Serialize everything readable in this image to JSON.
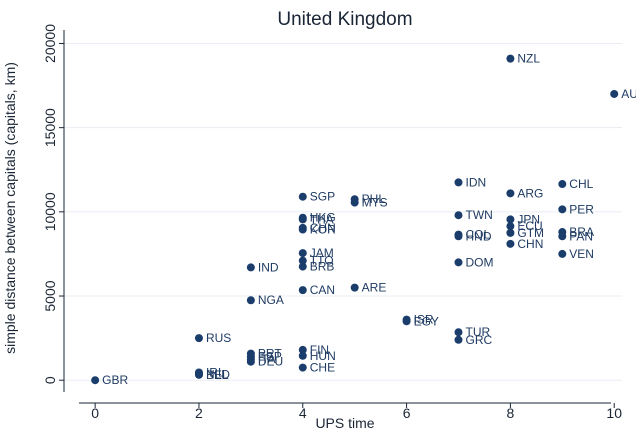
{
  "chart_data": {
    "type": "scatter",
    "title": "United Kingdom",
    "xlabel": "UPS time",
    "ylabel": "simple distance between capitals (capitals, km)",
    "xlim": [
      -0.6,
      10.15
    ],
    "ylim": [
      -700,
      20800
    ],
    "xticks": [
      0,
      2,
      4,
      6,
      8,
      10
    ],
    "yticks": [
      0,
      5000,
      10000,
      15000,
      20000
    ],
    "grid": "horizontal",
    "legend": "none",
    "colors": {
      "marker": "#1a3d6b",
      "label": "#1f3b63",
      "grid": "#e8edf3",
      "axis": "#1a2535",
      "background": "#ffffff"
    },
    "points": [
      {
        "label": "GBR",
        "x": 0,
        "y": 0
      },
      {
        "label": "RUS",
        "x": 2,
        "y": 2500
      },
      {
        "label": "IRL",
        "x": 2,
        "y": 460
      },
      {
        "label": "NLD",
        "x": 2,
        "y": 350
      },
      {
        "label": "BEL",
        "x": 2,
        "y": 320
      },
      {
        "label": "IND",
        "x": 3,
        "y": 6700
      },
      {
        "label": "NGA",
        "x": 3,
        "y": 4750
      },
      {
        "label": "PRT",
        "x": 3,
        "y": 1580
      },
      {
        "label": "ESP",
        "x": 3,
        "y": 1400
      },
      {
        "label": "ITA",
        "x": 3,
        "y": 1250
      },
      {
        "label": "DEU",
        "x": 3,
        "y": 1100
      },
      {
        "label": "SGP",
        "x": 4,
        "y": 10900
      },
      {
        "label": "HKG",
        "x": 4,
        "y": 9650
      },
      {
        "label": "THA",
        "x": 4,
        "y": 9550
      },
      {
        "label": "KOR",
        "x": 4,
        "y": 8950
      },
      {
        "label": "CHN",
        "x": 4,
        "y": 9050
      },
      {
        "label": "JAM",
        "x": 4,
        "y": 7550
      },
      {
        "label": "TTO",
        "x": 4,
        "y": 7100
      },
      {
        "label": "BRB",
        "x": 4,
        "y": 6750
      },
      {
        "label": "CAN",
        "x": 4,
        "y": 5350
      },
      {
        "label": "FIN",
        "x": 4,
        "y": 1800
      },
      {
        "label": "HUN",
        "x": 4,
        "y": 1450
      },
      {
        "label": "CHE",
        "x": 4,
        "y": 750
      },
      {
        "label": "PHL",
        "x": 5,
        "y": 10750
      },
      {
        "label": "MYS",
        "x": 5,
        "y": 10550
      },
      {
        "label": "ARE",
        "x": 5,
        "y": 5500
      },
      {
        "label": "ISR",
        "x": 6,
        "y": 3600
      },
      {
        "label": "EGY",
        "x": 6,
        "y": 3500
      },
      {
        "label": "IDN",
        "x": 7,
        "y": 11750
      },
      {
        "label": "TWN",
        "x": 7,
        "y": 9800
      },
      {
        "label": "COL",
        "x": 7,
        "y": 8650
      },
      {
        "label": "HND",
        "x": 7,
        "y": 8550
      },
      {
        "label": "DOM",
        "x": 7,
        "y": 7000
      },
      {
        "label": "TUR",
        "x": 7,
        "y": 2850
      },
      {
        "label": "GRC",
        "x": 7,
        "y": 2400
      },
      {
        "label": "NZL",
        "x": 8,
        "y": 19100
      },
      {
        "label": "ARG",
        "x": 8,
        "y": 11100
      },
      {
        "label": "JPN",
        "x": 8,
        "y": 9550
      },
      {
        "label": "ECU",
        "x": 8,
        "y": 9150
      },
      {
        "label": "GTM",
        "x": 8,
        "y": 8750
      },
      {
        "label": "CHN",
        "x": 8,
        "y": 8100
      },
      {
        "label": "AUS",
        "x": 10,
        "y": 17000
      },
      {
        "label": "CHL",
        "x": 9,
        "y": 11650
      },
      {
        "label": "PER",
        "x": 9,
        "y": 10150
      },
      {
        "label": "BRA",
        "x": 9,
        "y": 8800
      },
      {
        "label": "PAN",
        "x": 9,
        "y": 8550
      },
      {
        "label": "VEN",
        "x": 9,
        "y": 7500
      }
    ]
  }
}
